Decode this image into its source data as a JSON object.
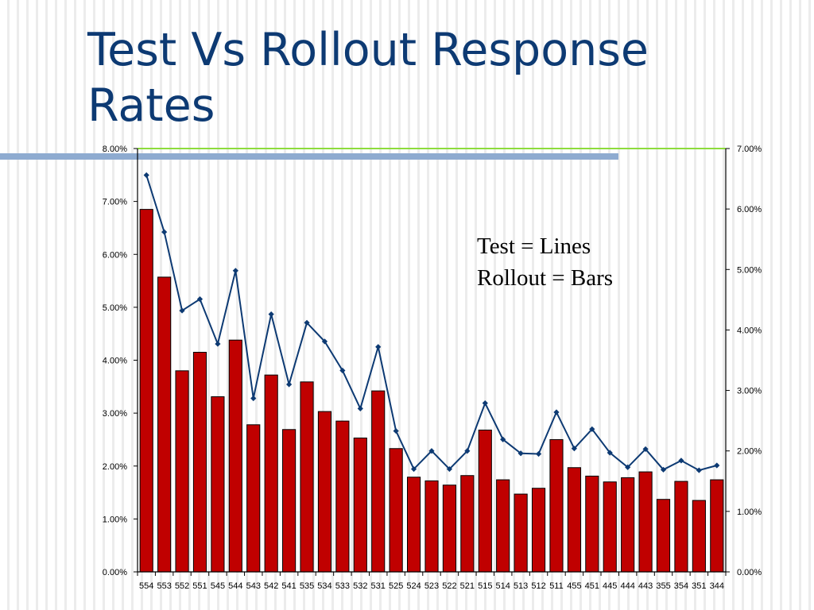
{
  "slide": {
    "title": "Test Vs Rollout Response Rates"
  },
  "annotation": {
    "line1": "Test = Lines",
    "line2": "Rollout = Bars"
  },
  "chart_data": {
    "type": "bar",
    "title": "",
    "categories": [
      "554",
      "553",
      "552",
      "551",
      "545",
      "544",
      "543",
      "542",
      "541",
      "535",
      "534",
      "533",
      "532",
      "531",
      "525",
      "524",
      "523",
      "522",
      "521",
      "515",
      "514",
      "513",
      "512",
      "511",
      "455",
      "451",
      "445",
      "444",
      "443",
      "355",
      "354",
      "351",
      "344"
    ],
    "series": [
      {
        "name": "Rollout",
        "type": "bar",
        "axis": "left",
        "values": [
          6.85,
          5.57,
          3.8,
          4.15,
          3.31,
          4.38,
          2.78,
          3.72,
          2.69,
          3.59,
          3.03,
          2.85,
          2.53,
          3.42,
          2.33,
          1.79,
          1.72,
          1.64,
          1.82,
          2.68,
          1.74,
          1.47,
          1.58,
          2.5,
          1.97,
          1.81,
          1.7,
          1.78,
          1.89,
          1.37,
          1.71,
          1.35,
          1.74
        ]
      },
      {
        "name": "Test",
        "type": "line",
        "axis": "right",
        "values": [
          6.56,
          5.62,
          4.32,
          4.51,
          3.77,
          4.98,
          2.87,
          4.26,
          3.1,
          4.12,
          3.81,
          3.33,
          2.7,
          3.72,
          2.33,
          1.7,
          2.0,
          1.7,
          2.0,
          2.79,
          2.19,
          1.96,
          1.95,
          2.64,
          2.04,
          2.36,
          1.97,
          1.73,
          2.03,
          1.69,
          1.84,
          1.68,
          1.76
        ]
      }
    ],
    "left_axis": {
      "ylim": [
        0,
        8
      ],
      "ticks": [
        "0.00%",
        "1.00%",
        "2.00%",
        "3.00%",
        "4.00%",
        "5.00%",
        "6.00%",
        "7.00%",
        "8.00%"
      ]
    },
    "right_axis": {
      "ylim": [
        0,
        7
      ],
      "ticks": [
        "0.00%",
        "1.00%",
        "2.00%",
        "3.00%",
        "4.00%",
        "5.00%",
        "6.00%",
        "7.00%"
      ]
    },
    "grid": false,
    "colors": {
      "bar_fill": "#c00000",
      "bar_stroke": "#000000",
      "line": "#0d3a73",
      "top_rule": "#8ddc3c"
    }
  }
}
